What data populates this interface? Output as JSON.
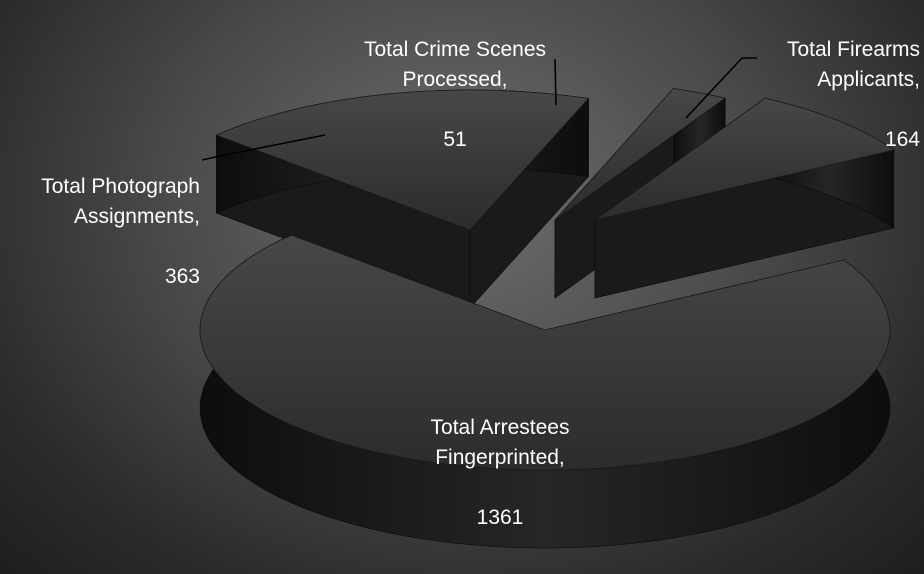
{
  "chart_data": {
    "type": "pie",
    "style": "3d-exploded",
    "slices": [
      {
        "name": "Total Arrestees Fingerprinted",
        "value": 1361
      },
      {
        "name": "Total Photograph Assignments",
        "value": 363
      },
      {
        "name": "Total Crime Scenes Processed",
        "value": 51
      },
      {
        "name": "Total Firearms Applicants",
        "value": 164
      }
    ],
    "legend": "none",
    "colors": {
      "slice_top": "#3a3a3a",
      "slice_side": "#141414",
      "label_text": "#ffffff",
      "background": "#4a4a4a"
    }
  },
  "labels": {
    "arrestees_name": "Total Arrestees Fingerprinted,",
    "arrestees_value": "1361",
    "photo_name": "Total Photograph Assignments,",
    "photo_value": "363",
    "crime_name": "Total Crime Scenes Processed,",
    "crime_value": "51",
    "firearms_name": "Total Firearms Applicants,",
    "firearms_value": "164"
  }
}
